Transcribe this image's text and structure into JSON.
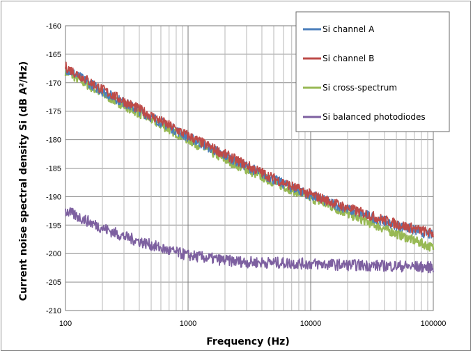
{
  "chart_data": {
    "type": "line",
    "xlabel": "Frequency (Hz)",
    "ylabel": "Current noise spectral density  Si (dB A²/Hz)",
    "x_scale": "log",
    "xlim": [
      100,
      100000
    ],
    "ylim": [
      -210,
      -160
    ],
    "x_ticks": [
      "100",
      "1000",
      "10000",
      "100000"
    ],
    "y_ticks": [
      "-160",
      "-165",
      "-170",
      "-175",
      "-180",
      "-185",
      "-190",
      "-195",
      "-200",
      "-205",
      "-210"
    ],
    "grid": true,
    "legend_position": "top-right",
    "series": [
      {
        "name": "Si channel A",
        "color": "#4a7ebb",
        "x": [
          100,
          200,
          500,
          1000,
          2000,
          5000,
          10000,
          20000,
          50000,
          100000
        ],
        "y": [
          -167.5,
          -171.5,
          -176.0,
          -179.5,
          -182.8,
          -187.0,
          -189.8,
          -192.2,
          -195.0,
          -196.8
        ]
      },
      {
        "name": "Si channel B",
        "color": "#be4b48",
        "x": [
          100,
          200,
          500,
          1000,
          2000,
          5000,
          10000,
          20000,
          50000,
          100000
        ],
        "y": [
          -167.2,
          -171.2,
          -175.8,
          -179.3,
          -182.6,
          -186.8,
          -189.6,
          -192.0,
          -194.8,
          -196.5
        ]
      },
      {
        "name": "Si cross-spectrum",
        "color": "#98b954",
        "x": [
          100,
          200,
          500,
          1000,
          2000,
          5000,
          10000,
          20000,
          50000,
          100000
        ],
        "y": [
          -168.0,
          -172.0,
          -176.5,
          -180.0,
          -183.5,
          -187.5,
          -190.2,
          -193.0,
          -196.5,
          -199.0
        ]
      },
      {
        "name": "Si balanced photodiodes",
        "color": "#7d60a0",
        "x": [
          100,
          200,
          300,
          500,
          700,
          1000,
          2000,
          3000,
          5000,
          10000,
          20000,
          50000,
          100000
        ],
        "y": [
          -192.5,
          -195.5,
          -197.0,
          -198.5,
          -199.5,
          -200.3,
          -201.2,
          -201.5,
          -201.6,
          -201.8,
          -202.0,
          -202.2,
          -202.4
        ]
      }
    ]
  }
}
